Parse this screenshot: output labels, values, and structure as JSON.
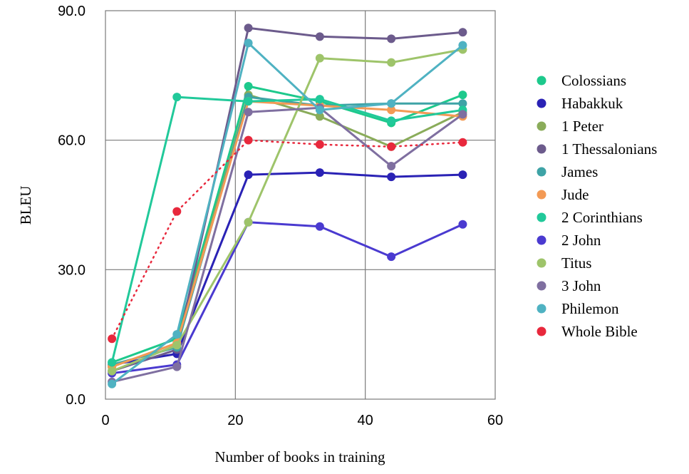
{
  "chart_data": {
    "type": "line",
    "title": "",
    "xlabel": "Number of books in training",
    "ylabel": "BLEU",
    "xlim": [
      0,
      60
    ],
    "ylim": [
      0,
      90
    ],
    "xticks": [
      0,
      20,
      40,
      60
    ],
    "xtick_labels": [
      "0",
      "20",
      "40",
      "60"
    ],
    "yticks": [
      0,
      30,
      60,
      90
    ],
    "ytick_labels": [
      "0.0",
      "30.0",
      "60.0",
      "90.0"
    ],
    "grid": true,
    "legend_position": "right",
    "x": [
      1,
      11,
      22,
      33,
      44,
      55
    ],
    "series": [
      {
        "name": "Colossians",
        "color": "#1dc98c",
        "style": "solid",
        "values": [
          8.5,
          14.0,
          72.5,
          69.0,
          64.0,
          70.5
        ]
      },
      {
        "name": "Habakkuk",
        "color": "#2a22b5",
        "style": "solid",
        "values": [
          8.0,
          10.5,
          52.0,
          52.5,
          51.5,
          52.0
        ]
      },
      {
        "name": "1 Peter",
        "color": "#8aac5a",
        "style": "solid",
        "values": [
          7.5,
          13.0,
          70.5,
          65.5,
          58.5,
          66.5
        ]
      },
      {
        "name": "1 Thessalonians",
        "color": "#6c5b8c",
        "style": "solid",
        "values": [
          6.5,
          11.5,
          86.0,
          84.0,
          83.5,
          85.0
        ]
      },
      {
        "name": "James",
        "color": "#3ea3a6",
        "style": "solid",
        "values": [
          8.0,
          12.0,
          70.0,
          68.0,
          68.5,
          68.5
        ]
      },
      {
        "name": "Jude",
        "color": "#f39a55",
        "style": "solid",
        "values": [
          7.5,
          13.0,
          69.0,
          68.0,
          67.0,
          65.5
        ]
      },
      {
        "name": "2 Corinthians",
        "color": "#21c99a",
        "style": "solid",
        "values": [
          8.5,
          70.0,
          69.0,
          69.5,
          64.5,
          67.0
        ]
      },
      {
        "name": "2 John",
        "color": "#4a3ad0",
        "style": "solid",
        "values": [
          6.0,
          8.0,
          41.0,
          40.0,
          33.0,
          40.5
        ]
      },
      {
        "name": "Titus",
        "color": "#9ec46a",
        "style": "solid",
        "values": [
          6.5,
          12.5,
          41.0,
          79.0,
          78.0,
          81.0
        ]
      },
      {
        "name": "3 John",
        "color": "#7f6fa0",
        "style": "solid",
        "values": [
          4.0,
          7.5,
          66.5,
          67.5,
          54.0,
          66.0
        ]
      },
      {
        "name": "Philemon",
        "color": "#4fb2c2",
        "style": "solid",
        "values": [
          3.5,
          15.0,
          82.5,
          67.0,
          68.5,
          82.0
        ]
      },
      {
        "name": "Whole Bible",
        "color": "#e8283c",
        "style": "dotted",
        "values": [
          14.0,
          43.5,
          60.0,
          59.0,
          58.5,
          59.5
        ]
      }
    ]
  }
}
